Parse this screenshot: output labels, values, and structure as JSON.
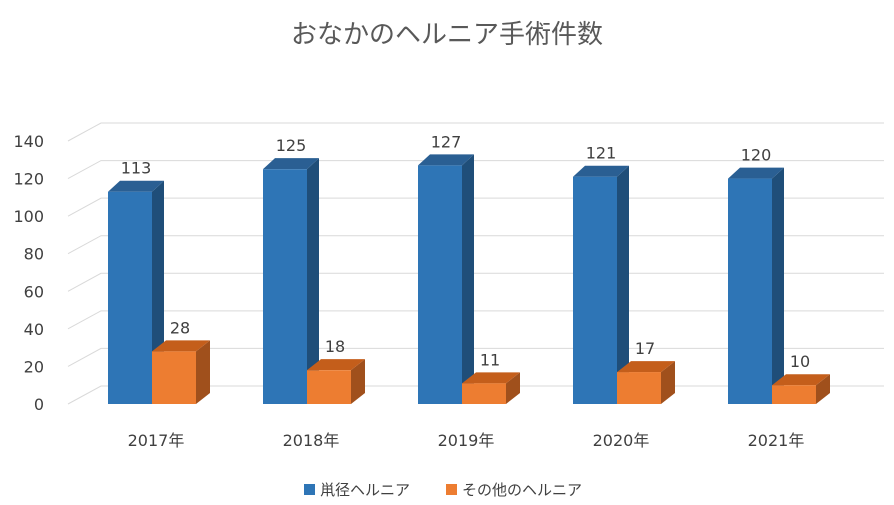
{
  "chart_data": {
    "type": "bar",
    "title": "おなかのヘルニア手術件数",
    "categories": [
      "2017年",
      "2018年",
      "2019年",
      "2020年",
      "2021年"
    ],
    "series": [
      {
        "name": "鼡径ヘルニア",
        "values": [
          113,
          125,
          127,
          121,
          120
        ],
        "color": "#2e75b6",
        "side_color": "#1f4e79",
        "top_color": "#2a5f93"
      },
      {
        "name": "その他のヘルニア",
        "values": [
          28,
          18,
          11,
          17,
          10
        ],
        "color": "#ed7d31",
        "side_color": "#a0501c",
        "top_color": "#c45e1b"
      }
    ],
    "ylim": [
      0,
      140
    ],
    "yticks": [
      0,
      20,
      40,
      60,
      80,
      100,
      120,
      140
    ],
    "xlabel": "",
    "ylabel": "",
    "grid": true,
    "legend": "bottom"
  }
}
